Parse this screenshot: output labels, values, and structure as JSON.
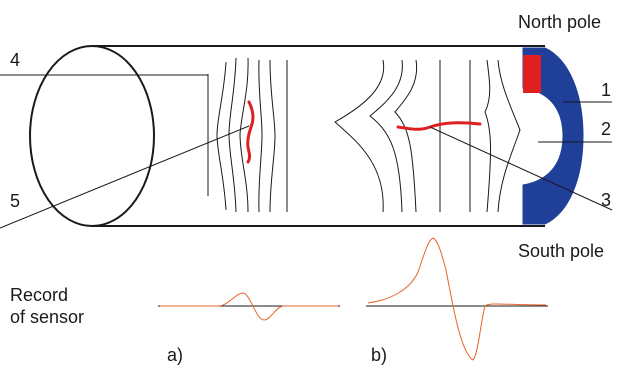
{
  "labels": {
    "north_pole": "North pole",
    "south_pole": "South pole",
    "num_1": "1",
    "num_2": "2",
    "num_3": "3",
    "num_4": "4",
    "num_5": "5",
    "record_line1": "Record",
    "record_line2": "of sensor",
    "panel_a": "a)",
    "panel_b": "b)"
  },
  "colors": {
    "outline": "#1a1a1a",
    "magnet": "#1f3f99",
    "pole_piece": "#e02020",
    "crack": "#e02020",
    "signal": "#e8642a"
  }
}
